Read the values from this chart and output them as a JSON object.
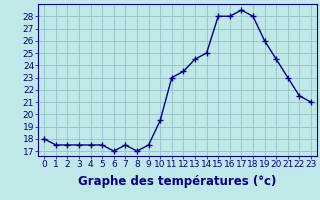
{
  "hours": [
    0,
    1,
    2,
    3,
    4,
    5,
    6,
    7,
    8,
    9,
    10,
    11,
    12,
    13,
    14,
    15,
    16,
    17,
    18,
    19,
    20,
    21,
    22,
    23
  ],
  "temperatures": [
    18.0,
    17.5,
    17.5,
    17.5,
    17.5,
    17.5,
    17.0,
    17.5,
    17.0,
    17.5,
    19.5,
    23.0,
    23.5,
    24.5,
    25.0,
    28.0,
    28.0,
    28.5,
    28.0,
    26.0,
    24.5,
    23.0,
    21.5,
    21.0
  ],
  "line_color": "#00008B",
  "marker": "+",
  "marker_size": 4,
  "marker_linewidth": 1.0,
  "bg_color": "#c0e8e8",
  "grid_color": "#98c0c8",
  "xlabel": "Graphe des températures (°c)",
  "ylim_min": 16.6,
  "ylim_max": 29.0,
  "yticks": [
    17,
    18,
    19,
    20,
    21,
    22,
    23,
    24,
    25,
    26,
    27,
    28
  ],
  "xticks": [
    0,
    1,
    2,
    3,
    4,
    5,
    6,
    7,
    8,
    9,
    10,
    11,
    12,
    13,
    14,
    15,
    16,
    17,
    18,
    19,
    20,
    21,
    22,
    23
  ],
  "tick_label_fontsize": 6.5,
  "xlabel_fontsize": 8.5,
  "linewidth": 1.0
}
